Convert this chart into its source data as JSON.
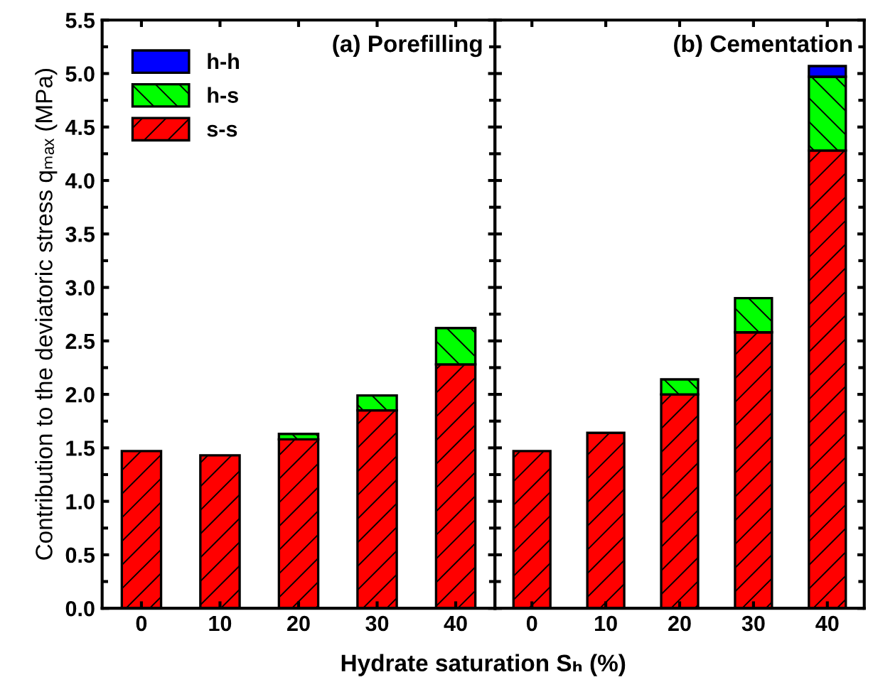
{
  "chart_data": [
    {
      "type": "bar",
      "stacked": true,
      "categories": [
        "0",
        "10",
        "20",
        "30",
        "40"
      ],
      "ylabel": "Contribution to the deviatoric stress qₘₐₓ (MPa)",
      "xlabel": "Hydrate saturation Sₕ (%)",
      "ylim": [
        0,
        5.5
      ],
      "yticks": [
        {
          "value": 0,
          "label": "0.0"
        },
        0.5,
        {
          "value": 1,
          "label": "1.0"
        },
        1.5,
        {
          "value": 2,
          "label": "2.0"
        },
        2.5,
        {
          "value": 3,
          "label": "3.0"
        },
        3.5,
        {
          "value": 4,
          "label": "4.0"
        },
        4.5,
        {
          "value": 5,
          "label": "5.0"
        },
        5.5
      ],
      "legend": "top left",
      "annotations": [
        "(a) Porefilling"
      ],
      "series": [
        {
          "name": "s-s",
          "color": "#ff0000",
          "values": [
            1.47,
            1.43,
            1.58,
            1.85,
            2.28
          ]
        },
        {
          "name": "h-s",
          "color": "#00ff00",
          "values": [
            null,
            null,
            0.05,
            0.14,
            0.34
          ]
        },
        {
          "name": "h-h",
          "color": "#0000ff",
          "values": [
            null,
            null,
            null,
            null,
            null
          ]
        }
      ]
    },
    {
      "type": "bar",
      "stacked": true,
      "categories": [
        "0",
        "10",
        "20",
        "30",
        "40"
      ],
      "ylim": [
        0,
        5.5
      ],
      "yticks": [
        {
          "value": 0,
          "label": null
        },
        {
          "value": 0.5,
          "label": null
        },
        {
          "value": 1,
          "label": null
        },
        {
          "value": 1.5,
          "label": null
        },
        {
          "value": 2,
          "label": null
        },
        {
          "value": 2.5,
          "label": null
        },
        {
          "value": 3,
          "label": null
        },
        {
          "value": 3.5,
          "label": null
        },
        {
          "value": 4,
          "label": null
        },
        {
          "value": 4.5,
          "label": null
        },
        {
          "value": 5,
          "label": null
        },
        {
          "value": 5.5,
          "label": null
        }
      ],
      "tick_labels": "x",
      "annotations": [
        "(b) Cementation"
      ],
      "series": [
        {
          "color": "#ff0000",
          "values": [
            1.47,
            1.64,
            2.0,
            2.58,
            4.28
          ]
        },
        {
          "color": "#00ff00",
          "values": [
            null,
            null,
            0.14,
            0.32,
            0.69
          ]
        },
        {
          "color": "#0000ff",
          "values": [
            null,
            null,
            null,
            null,
            0.1
          ]
        }
      ]
    }
  ]
}
